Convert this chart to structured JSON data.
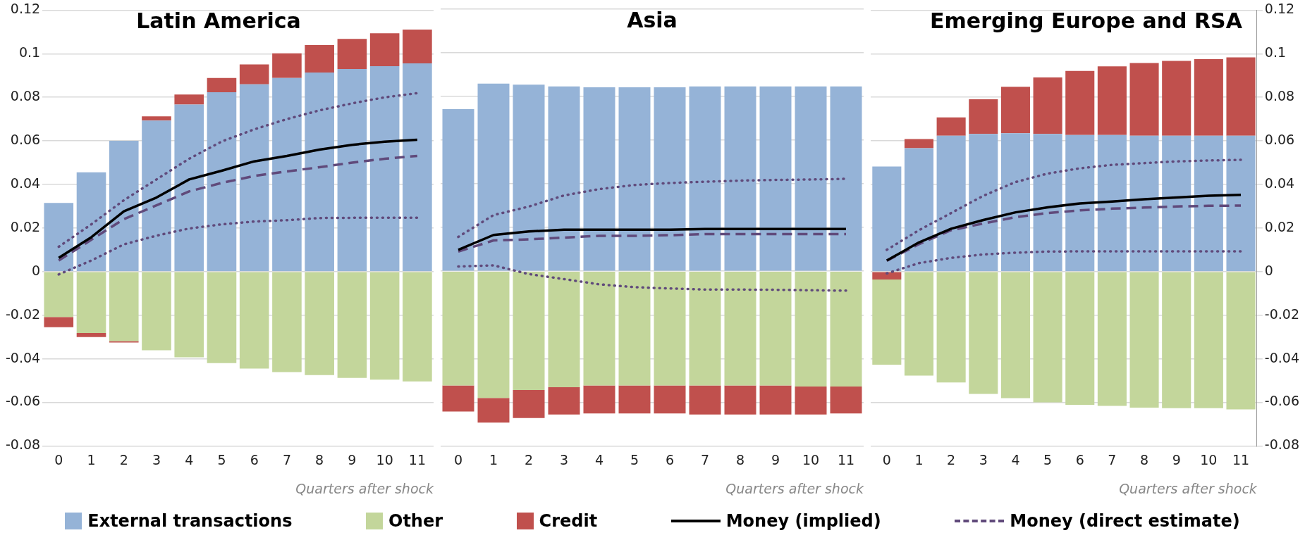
{
  "chart_data": [
    {
      "type": "bar",
      "title": "Latin America",
      "xlabel": "Quarters after shock",
      "categories": [
        "0",
        "1",
        "2",
        "3",
        "4",
        "5",
        "6",
        "7",
        "8",
        "9",
        "10",
        "11"
      ],
      "stacked": true,
      "grid": "y",
      "legend": "bottom",
      "marker": "none",
      "ylim": [
        -0.08,
        0.12
      ],
      "yticks": [
        -0.08,
        -0.06,
        -0.04,
        -0.02,
        0,
        0.02,
        0.04,
        0.06,
        0.08,
        0.1,
        0.12
      ],
      "series": [
        {
          "name": "External transactions",
          "color": "#95b3d7",
          "values": [
            0.0315,
            0.0456,
            0.06,
            0.0693,
            0.0767,
            0.0823,
            0.086,
            0.0889,
            0.0914,
            0.093,
            0.0943,
            0.0956
          ]
        },
        {
          "name": "Other",
          "color": "#c3d69b",
          "values": [
            -0.0208,
            -0.0282,
            -0.0319,
            -0.0361,
            -0.0393,
            -0.042,
            -0.0445,
            -0.0461,
            -0.0475,
            -0.0488,
            -0.0496,
            -0.0504
          ]
        },
        {
          "name": "Credit",
          "color": "#c0504d",
          "values": [
            -0.0047,
            -0.0018,
            -0.0006,
            0.002,
            0.0046,
            0.0066,
            0.0091,
            0.0113,
            0.0126,
            0.0138,
            0.0151,
            0.0155
          ]
        },
        {
          "name": "Money (implied)",
          "type": "line",
          "line_style": "solid",
          "color": "#000000",
          "values": [
            0.0063,
            0.0158,
            0.0277,
            0.034,
            0.0423,
            0.0463,
            0.0506,
            0.0531,
            0.056,
            0.0582,
            0.0596,
            0.0605
          ]
        },
        {
          "name": "Money (direct estimate)",
          "type": "line",
          "line_style": "dashed",
          "color": "#604a7b",
          "values": [
            0.0051,
            0.0146,
            0.0241,
            0.0304,
            0.0368,
            0.0407,
            0.0439,
            0.046,
            0.0479,
            0.05,
            0.0518,
            0.0531
          ]
        },
        {
          "type": "line",
          "line_style": "dotted",
          "color": "#604a7b",
          "values": [
            0.0114,
            0.0217,
            0.0328,
            0.0423,
            0.0518,
            0.0597,
            0.0653,
            0.07,
            0.074,
            0.0772,
            0.08,
            0.0819
          ]
        },
        {
          "type": "line",
          "line_style": "dotted",
          "color": "#604a7b",
          "values": [
            -0.0013,
            0.0051,
            0.0125,
            0.0165,
            0.0198,
            0.0217,
            0.023,
            0.0236,
            0.0246,
            0.0247,
            0.0247,
            0.0247
          ]
        }
      ]
    },
    {
      "type": "bar",
      "title": "Asia",
      "xlabel": "Quarters after shock",
      "categories": [
        "0",
        "1",
        "2",
        "3",
        "4",
        "5",
        "6",
        "7",
        "8",
        "9",
        "10",
        "11"
      ],
      "stacked": true,
      "grid": "y",
      "marker": "none",
      "tick_labels": "x",
      "ylim": [
        -0.08,
        0.12
      ],
      "yticks": [
        -0.08,
        -0.06,
        -0.04,
        -0.02,
        0,
        0.02,
        0.04,
        0.06,
        0.08,
        0.1,
        0.12
      ],
      "series": [
        {
          "color": "#95b3d7",
          "values": [
            0.0742,
            0.0859,
            0.0854,
            0.0846,
            0.0842,
            0.0842,
            0.0842,
            0.0846,
            0.0846,
            0.0846,
            0.0846,
            0.0846
          ]
        },
        {
          "color": "#c3d69b",
          "values": [
            -0.0523,
            -0.058,
            -0.0544,
            -0.0531,
            -0.0523,
            -0.0523,
            -0.0523,
            -0.0523,
            -0.0523,
            -0.0523,
            -0.0528,
            -0.0528
          ]
        },
        {
          "color": "#c0504d",
          "values": [
            -0.0119,
            -0.0113,
            -0.0128,
            -0.0125,
            -0.0128,
            -0.0128,
            -0.0128,
            -0.0133,
            -0.0133,
            -0.0133,
            -0.0128,
            -0.0123
          ]
        },
        {
          "type": "line",
          "line_style": "solid",
          "color": "#000000",
          "values": [
            0.0098,
            0.0166,
            0.0182,
            0.019,
            0.019,
            0.019,
            0.019,
            0.0193,
            0.0193,
            0.0193,
            0.0193,
            0.0193
          ]
        },
        {
          "type": "line",
          "line_style": "dashed",
          "color": "#604a7b",
          "values": [
            0.009,
            0.0141,
            0.0146,
            0.0154,
            0.0162,
            0.0162,
            0.0165,
            0.017,
            0.017,
            0.017,
            0.017,
            0.017
          ]
        },
        {
          "type": "line",
          "line_style": "dotted",
          "color": "#604a7b",
          "values": [
            0.0157,
            0.0257,
            0.0296,
            0.0347,
            0.0376,
            0.0395,
            0.0404,
            0.041,
            0.0415,
            0.0418,
            0.042,
            0.0423
          ]
        },
        {
          "type": "line",
          "line_style": "dotted",
          "color": "#604a7b",
          "values": [
            0.0022,
            0.0027,
            -0.0013,
            -0.0036,
            -0.006,
            -0.0073,
            -0.0079,
            -0.0084,
            -0.0084,
            -0.0085,
            -0.0087,
            -0.0089
          ]
        }
      ]
    },
    {
      "type": "bar",
      "title": "Emerging Europe and RSA",
      "xlabel": "Quarters after shock",
      "categories": [
        "0",
        "1",
        "2",
        "3",
        "4",
        "5",
        "6",
        "7",
        "8",
        "9",
        "10",
        "11"
      ],
      "stacked": true,
      "grid": "y",
      "marker": "none",
      "ylim": [
        -0.08,
        0.12
      ],
      "yticks": [
        -0.08,
        -0.06,
        -0.04,
        -0.02,
        0,
        0.02,
        0.04,
        0.06,
        0.08,
        0.1,
        0.12
      ],
      "series": [
        {
          "color": "#95b3d7",
          "values": [
            0.0482,
            0.0566,
            0.0624,
            0.0632,
            0.0635,
            0.0632,
            0.0627,
            0.0627,
            0.0624,
            0.0624,
            0.0624,
            0.0624
          ]
        },
        {
          "color": "#c0504d",
          "values": [
            -0.0036,
            0.0042,
            0.0084,
            0.0159,
            0.0213,
            0.0259,
            0.0294,
            0.0315,
            0.0333,
            0.0343,
            0.0351,
            0.0359
          ]
        },
        {
          "color": "#c3d69b",
          "values": [
            -0.0391,
            -0.0477,
            -0.0509,
            -0.0561,
            -0.0581,
            -0.06,
            -0.0611,
            -0.0616,
            -0.0624,
            -0.0627,
            -0.0627,
            -0.0632
          ]
        },
        {
          "type": "line",
          "line_style": "solid",
          "color": "#000000",
          "values": [
            0.0051,
            0.0134,
            0.0197,
            0.0237,
            0.0272,
            0.0295,
            0.0313,
            0.0322,
            0.0332,
            0.034,
            0.0348,
            0.0352
          ]
        },
        {
          "type": "line",
          "line_style": "dashed",
          "color": "#604a7b",
          "values": [
            0.005,
            0.0126,
            0.019,
            0.0221,
            0.025,
            0.0269,
            0.0281,
            0.0289,
            0.0294,
            0.0299,
            0.0302,
            0.0303
          ]
        },
        {
          "type": "line",
          "line_style": "dotted",
          "color": "#604a7b",
          "values": [
            0.01,
            0.019,
            0.0269,
            0.0348,
            0.0411,
            0.045,
            0.0474,
            0.049,
            0.0498,
            0.0506,
            0.051,
            0.0513
          ]
        },
        {
          "type": "line",
          "line_style": "dotted",
          "color": "#604a7b",
          "values": [
            -0.0008,
            0.0039,
            0.0063,
            0.0079,
            0.0087,
            0.0092,
            0.0093,
            0.0093,
            0.0093,
            0.0093,
            0.0093,
            0.0093
          ]
        }
      ]
    }
  ]
}
